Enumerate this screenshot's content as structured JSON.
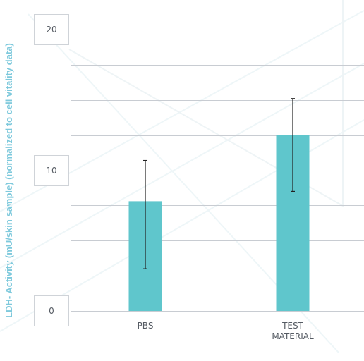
{
  "chart_data": {
    "type": "bar",
    "ylabel": "LDH- Activity (mU/skin sample) (normalized to cell vitality data)",
    "categories": [
      "PBS",
      "TEST\nMATERIAL"
    ],
    "values": [
      7.8,
      12.5
    ],
    "error": [
      {
        "low": 3.0,
        "high": 10.7
      },
      {
        "low": 8.5,
        "high": 15.1
      }
    ],
    "ylim": [
      0,
      20
    ],
    "yticks": [
      "0",
      "10",
      "20"
    ],
    "grid": true,
    "bar_color": "#5fc6cc",
    "grid_color": "#c8ccd2"
  }
}
